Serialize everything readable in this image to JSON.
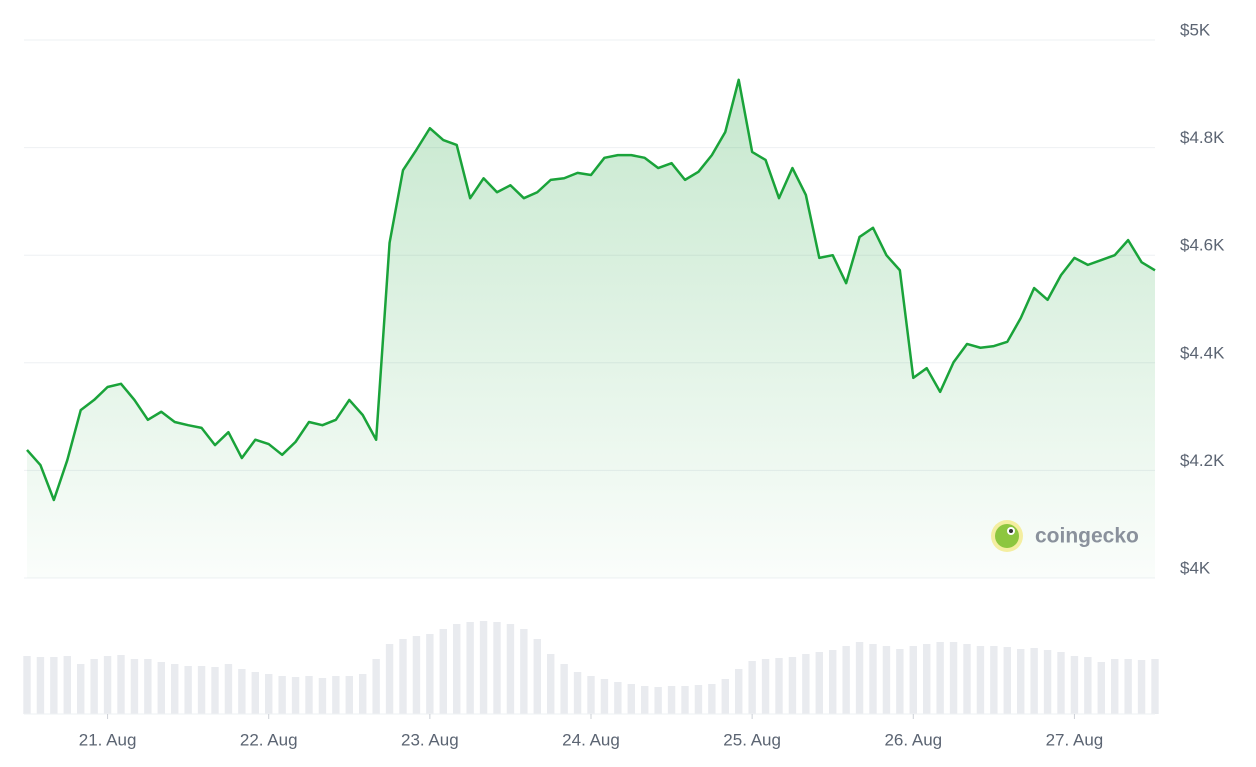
{
  "chart_data": {
    "type": "line",
    "categories": [
      null,
      null,
      null,
      null,
      null,
      null,
      "21. Aug",
      null,
      null,
      null,
      null,
      null,
      null,
      null,
      null,
      null,
      null,
      null,
      "22. Aug",
      null,
      null,
      null,
      null,
      null,
      null,
      null,
      null,
      null,
      null,
      null,
      "23. Aug",
      null,
      null,
      null,
      null,
      null,
      null,
      null,
      null,
      null,
      null,
      null,
      "24. Aug",
      null,
      null,
      null,
      null,
      null,
      null,
      null,
      null,
      null,
      null,
      null,
      "25. Aug",
      null,
      null,
      null,
      null,
      null,
      null,
      null,
      null,
      null,
      null,
      null,
      "26. Aug",
      null,
      null,
      null,
      null,
      null,
      null,
      null,
      null,
      null,
      null,
      null,
      "27. Aug",
      null,
      null,
      null,
      null,
      null,
      null
    ],
    "series": [
      {
        "color": "#1aa33a",
        "values": [
          4238,
          4210,
          4145,
          4219,
          4312,
          4331,
          4355,
          4361,
          4331,
          4294,
          4309,
          4290,
          4284,
          4279,
          4247,
          4271,
          4223,
          4257,
          4249,
          4229,
          4253,
          4290,
          4284,
          4294,
          4331,
          4303,
          4257,
          4623,
          4758,
          4796,
          4836,
          4814,
          4805,
          4706,
          4743,
          4717,
          4730,
          4706,
          4717,
          4740,
          4743,
          4753,
          4749,
          4781,
          4786,
          4786,
          4781,
          4762,
          4771,
          4740,
          4755,
          4786,
          4829,
          4926,
          4792,
          4777,
          4706,
          4762,
          4712,
          4595,
          4600,
          4548,
          4634,
          4651,
          4600,
          4572,
          4372,
          4390,
          4346,
          4401,
          4435,
          4428,
          4431,
          4439,
          4483,
          4539,
          4517,
          4563,
          4595,
          4582,
          4591,
          4600,
          4628,
          4587,
          4572
        ]
      },
      {
        "type": "bar",
        "axis": "y2",
        "color": "#e9ebef",
        "values": [
          58,
          57,
          57,
          58,
          50,
          55,
          58,
          59,
          55,
          55,
          52,
          50,
          48,
          48,
          47,
          50,
          45,
          42,
          40,
          38,
          37,
          38,
          36,
          38,
          38,
          40,
          55,
          70,
          75,
          78,
          80,
          85,
          90,
          92,
          93,
          92,
          90,
          85,
          75,
          60,
          50,
          42,
          38,
          35,
          32,
          30,
          28,
          27,
          28,
          28,
          29,
          30,
          35,
          45,
          53,
          55,
          56,
          57,
          60,
          62,
          64,
          68,
          72,
          70,
          68,
          65,
          68,
          70,
          72,
          72,
          70,
          68,
          68,
          67,
          65,
          66,
          64,
          62,
          58,
          57,
          52,
          55,
          55,
          54,
          55
        ]
      }
    ],
    "ylim": [
      4000,
      5000
    ],
    "yticks": [
      {
        "value": 4000,
        "label": "$4K"
      },
      {
        "value": 4200,
        "label": "$4.2K"
      },
      {
        "value": 4400,
        "label": "$4.4K"
      },
      {
        "value": 4600,
        "label": "$4.6K"
      },
      {
        "value": 4800,
        "label": "$4.8K"
      },
      {
        "value": 5000,
        "label": "$5K"
      }
    ],
    "y2lim": [
      0,
      100
    ],
    "grid": true,
    "watermark": "coingecko"
  }
}
